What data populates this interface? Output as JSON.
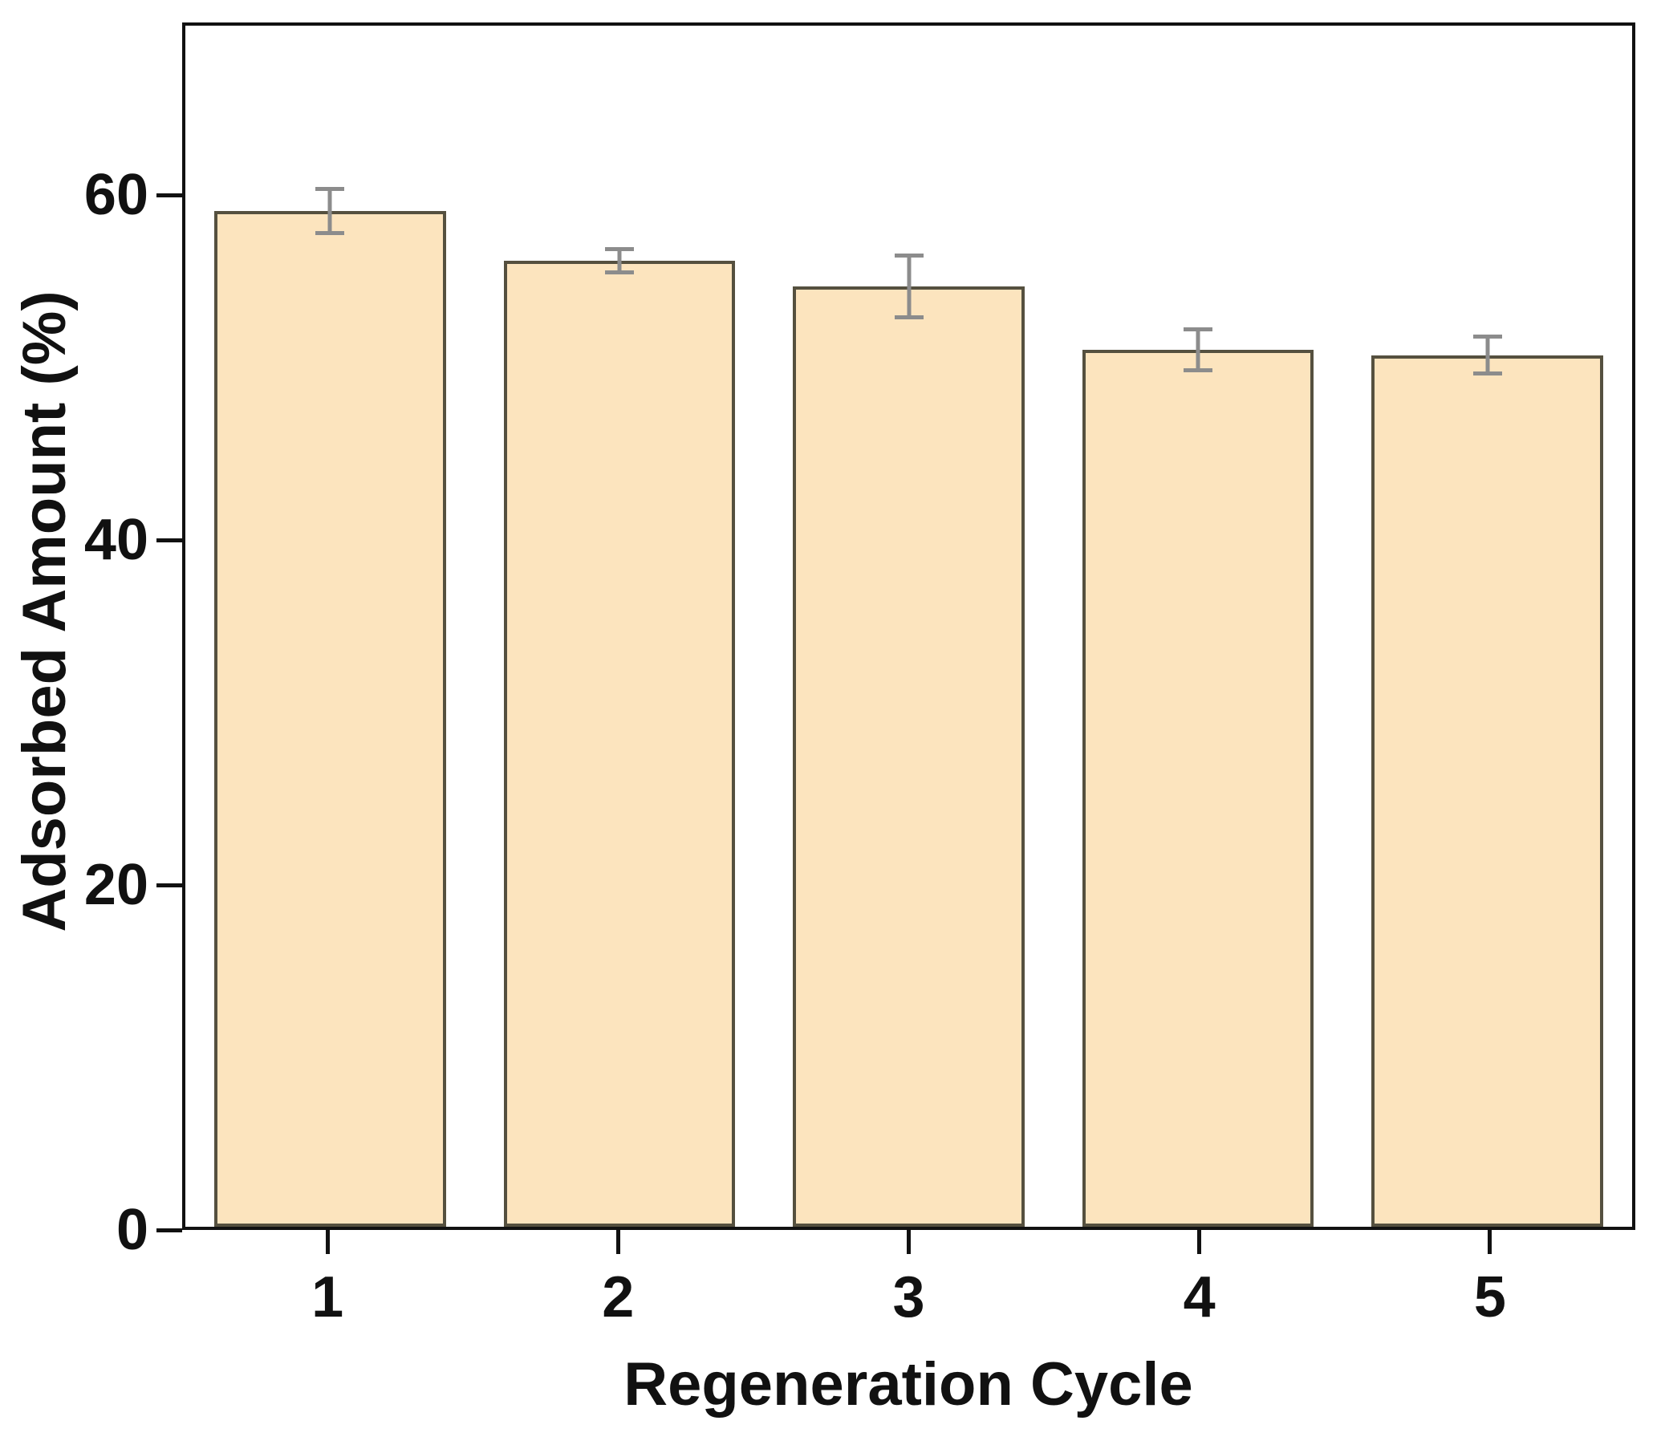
{
  "chart_data": {
    "type": "bar",
    "title": "",
    "categories": [
      "1",
      "2",
      "3",
      "4",
      "5"
    ],
    "values": [
      59.2,
      56.3,
      54.8,
      51.1,
      50.8
    ],
    "errors": [
      1.4,
      0.8,
      1.9,
      1.3,
      1.2
    ],
    "xlabel": "Regeneration Cycle",
    "ylabel": "Adsorbed Amount (%)",
    "ylim": [
      0,
      70
    ],
    "yticks": [
      0,
      20,
      40,
      60
    ],
    "grid": "off",
    "legend": "none",
    "colors": {
      "bar_fill": "#FCE4BE",
      "bar_border": "#55503F",
      "error_bar": "#8C8C8C",
      "frame": "#111111",
      "background": "#FFFFFF"
    }
  }
}
